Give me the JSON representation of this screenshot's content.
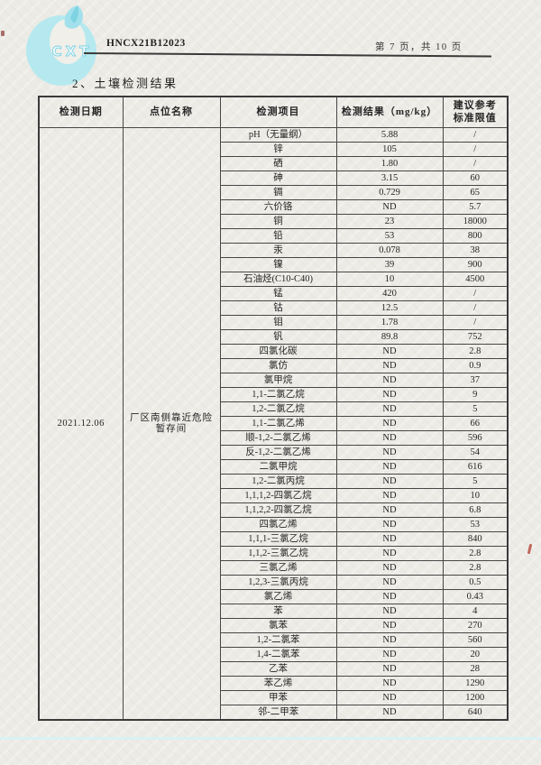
{
  "header": {
    "logo_text": "CXT",
    "logo_color": "#b5e9ef",
    "report_code": "HNCX21B12023",
    "page_info": "第 7 页，共 10 页"
  },
  "section_title": "2、土壤检测结果",
  "table": {
    "columns": [
      "检测日期",
      "点位名称",
      "检测项目",
      "检测结果（mg/kg）",
      "建议参考\n标准限值"
    ],
    "date": "2021.12.06",
    "location": "厂区南侧靠近危险\n暂存间",
    "rows": [
      {
        "item": "pH（无量纲）",
        "result": "5.88",
        "limit": "/"
      },
      {
        "item": "锌",
        "result": "105",
        "limit": "/"
      },
      {
        "item": "硒",
        "result": "1.80",
        "limit": "/"
      },
      {
        "item": "砷",
        "result": "3.15",
        "limit": "60"
      },
      {
        "item": "镉",
        "result": "0.729",
        "limit": "65"
      },
      {
        "item": "六价铬",
        "result": "ND",
        "limit": "5.7"
      },
      {
        "item": "铜",
        "result": "23",
        "limit": "18000"
      },
      {
        "item": "铅",
        "result": "53",
        "limit": "800"
      },
      {
        "item": "汞",
        "result": "0.078",
        "limit": "38"
      },
      {
        "item": "镍",
        "result": "39",
        "limit": "900"
      },
      {
        "item": "石油烃(C10-C40)",
        "result": "10",
        "limit": "4500"
      },
      {
        "item": "锰",
        "result": "420",
        "limit": "/"
      },
      {
        "item": "钴",
        "result": "12.5",
        "limit": "/"
      },
      {
        "item": "钼",
        "result": "1.78",
        "limit": "/"
      },
      {
        "item": "钒",
        "result": "89.8",
        "limit": "752"
      },
      {
        "item": "四氯化碳",
        "result": "ND",
        "limit": "2.8"
      },
      {
        "item": "氯仿",
        "result": "ND",
        "limit": "0.9"
      },
      {
        "item": "氯甲烷",
        "result": "ND",
        "limit": "37"
      },
      {
        "item": "1,1-二氯乙烷",
        "result": "ND",
        "limit": "9"
      },
      {
        "item": "1,2-二氯乙烷",
        "result": "ND",
        "limit": "5"
      },
      {
        "item": "1,1-二氯乙烯",
        "result": "ND",
        "limit": "66"
      },
      {
        "item": "顺-1,2-二氯乙烯",
        "result": "ND",
        "limit": "596"
      },
      {
        "item": "反-1,2-二氯乙烯",
        "result": "ND",
        "limit": "54"
      },
      {
        "item": "二氯甲烷",
        "result": "ND",
        "limit": "616"
      },
      {
        "item": "1,2-二氯丙烷",
        "result": "ND",
        "limit": "5"
      },
      {
        "item": "1,1,1,2-四氯乙烷",
        "result": "ND",
        "limit": "10"
      },
      {
        "item": "1,1,2,2-四氯乙烷",
        "result": "ND",
        "limit": "6.8"
      },
      {
        "item": "四氯乙烯",
        "result": "ND",
        "limit": "53"
      },
      {
        "item": "1,1,1-三氯乙烷",
        "result": "ND",
        "limit": "840"
      },
      {
        "item": "1,1,2-三氯乙烷",
        "result": "ND",
        "limit": "2.8"
      },
      {
        "item": "三氯乙烯",
        "result": "ND",
        "limit": "2.8"
      },
      {
        "item": "1,2,3-三氯丙烷",
        "result": "ND",
        "limit": "0.5"
      },
      {
        "item": "氯乙烯",
        "result": "ND",
        "limit": "0.43"
      },
      {
        "item": "苯",
        "result": "ND",
        "limit": "4"
      },
      {
        "item": "氯苯",
        "result": "ND",
        "limit": "270"
      },
      {
        "item": "1,2-二氯苯",
        "result": "ND",
        "limit": "560"
      },
      {
        "item": "1,4-二氯苯",
        "result": "ND",
        "limit": "20"
      },
      {
        "item": "乙苯",
        "result": "ND",
        "limit": "28"
      },
      {
        "item": "苯乙烯",
        "result": "ND",
        "limit": "1290"
      },
      {
        "item": "甲苯",
        "result": "ND",
        "limit": "1200"
      },
      {
        "item": "邻-二甲苯",
        "result": "ND",
        "limit": "640"
      }
    ]
  }
}
